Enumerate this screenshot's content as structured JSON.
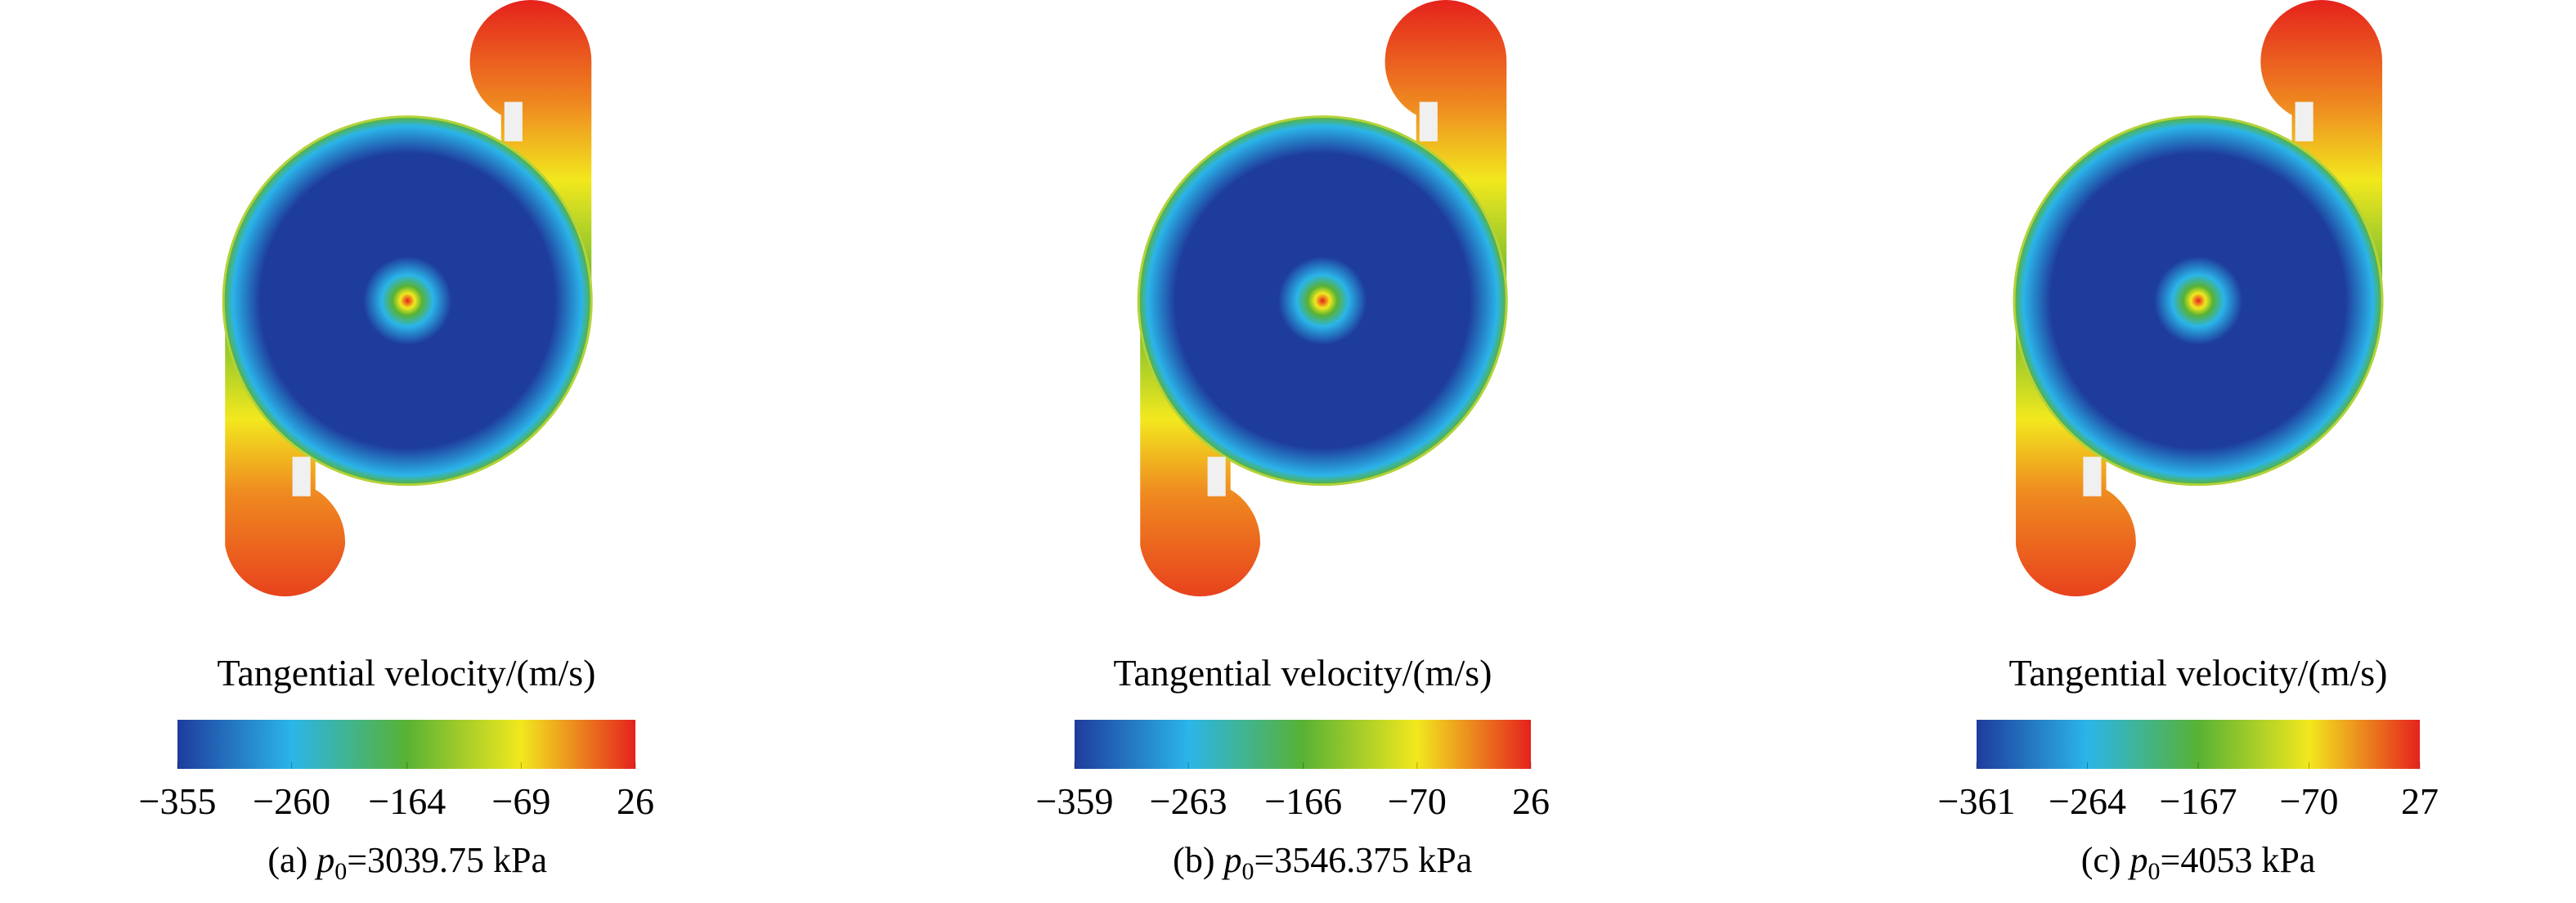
{
  "chart_data": [
    {
      "type": "contour",
      "colorbar_label": "Tangential velocity/(m/s)",
      "clim": [
        -355,
        26
      ],
      "ticks": [
        {
          "value": -355,
          "label": "−355"
        },
        {
          "value": -260,
          "label": "−260"
        },
        {
          "value": -164,
          "label": "−164"
        },
        {
          "value": -69,
          "label": "−69"
        },
        26
      ],
      "colormap": [
        "#1e3c9c",
        "#2bb5e9",
        "#58b234",
        "#f2e81e",
        "#e5221d"
      ],
      "caption": {
        "label": "(a)",
        "symbol": "p",
        "subscript": "0",
        "text": "=3039.75 kPa"
      }
    },
    {
      "type": "contour",
      "colorbar_label": "Tangential velocity/(m/s)",
      "clim": [
        -359,
        26
      ],
      "ticks": [
        {
          "value": -359,
          "label": "−359"
        },
        {
          "value": -263,
          "label": "−263"
        },
        {
          "value": -166,
          "label": "−166"
        },
        {
          "value": -70,
          "label": "−70"
        },
        26
      ],
      "colormap": [
        "#1e3c9c",
        "#2bb5e9",
        "#58b234",
        "#f2e81e",
        "#e5221d"
      ],
      "caption": {
        "label": "(b)",
        "symbol": "p",
        "subscript": "0",
        "text": "=3546.375 kPa"
      }
    },
    {
      "type": "contour",
      "colorbar_label": "Tangential velocity/(m/s)",
      "clim": [
        -361,
        27
      ],
      "ticks": [
        {
          "value": -361,
          "label": "−361"
        },
        {
          "value": -264,
          "label": "−264"
        },
        {
          "value": -167,
          "label": "−167"
        },
        {
          "value": -70,
          "label": "−70"
        },
        27
      ],
      "colormap": [
        "#1e3c9c",
        "#2bb5e9",
        "#58b234",
        "#f2e81e",
        "#e5221d"
      ],
      "caption": {
        "label": "(c)",
        "symbol": "p",
        "subscript": "0",
        "text": "=4053 kPa"
      }
    }
  ]
}
